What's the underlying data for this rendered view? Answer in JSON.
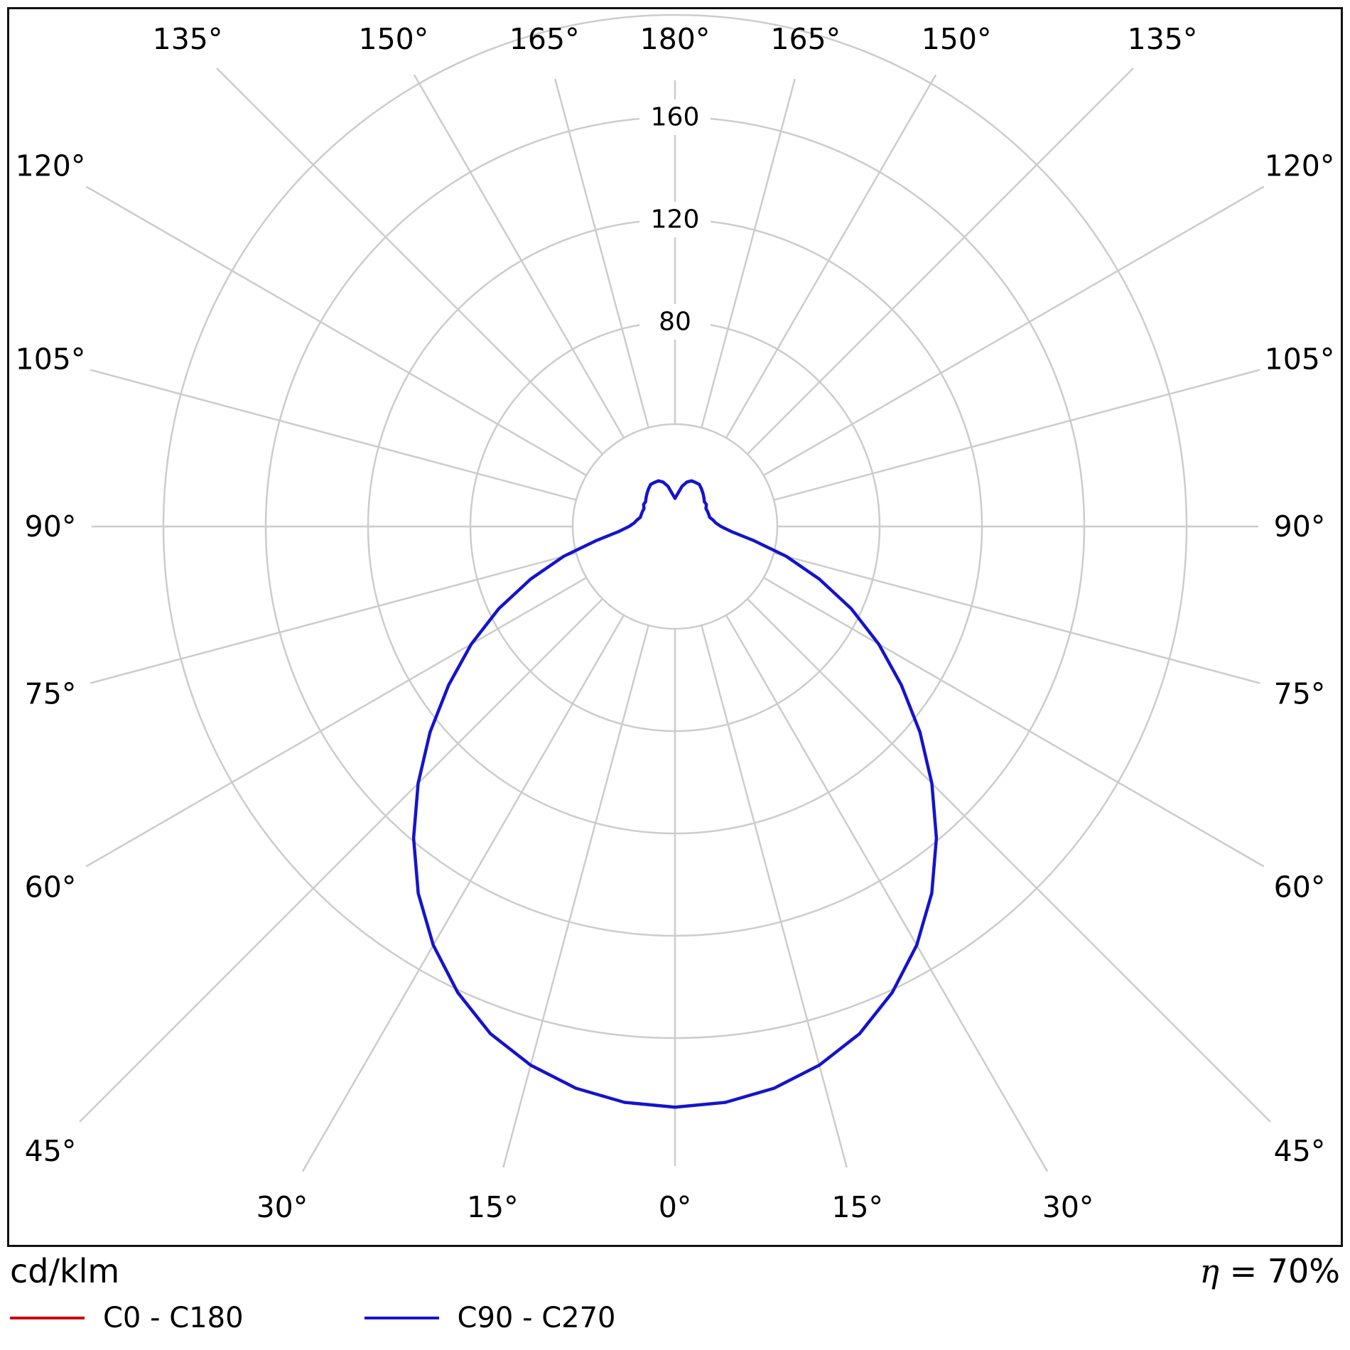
{
  "footer": {
    "units_label": "cd/klm",
    "efficiency_symbol": "η",
    "efficiency_rest": " = 70%"
  },
  "chart_data": {
    "type": "line",
    "subtype": "polar-photometric-luminous-intensity",
    "radial_unit": "cd/klm",
    "efficiency": "η = 70%",
    "mirror_symmetric": true,
    "grid_color": "#cccccc",
    "radial_ring_step": 40,
    "radial_max": 200,
    "radial_ticks": [
      80,
      120,
      160
    ],
    "angular_grid_step_deg": 15,
    "angular_labels_deg": [
      0,
      15,
      30,
      45,
      60,
      75,
      90,
      105,
      120,
      135,
      150,
      165,
      180
    ],
    "angles_deg": [
      0,
      5,
      10,
      15,
      20,
      25,
      30,
      35,
      40,
      45,
      50,
      55,
      60,
      65,
      70,
      75,
      80,
      85,
      90,
      95,
      100,
      105,
      110,
      115,
      120,
      125,
      130,
      135,
      140,
      145,
      150,
      155,
      160,
      165,
      170,
      175,
      180
    ],
    "series": [
      {
        "name": "C0 - C180",
        "color": "#cc0000",
        "values": [
          227,
          226,
          223,
          218,
          211,
          201,
          189,
          175,
          159,
          142,
          125,
          108,
          92,
          76,
          60,
          45,
          31,
          22,
          18,
          16,
          15,
          14,
          14,
          14,
          14,
          15,
          15,
          16,
          17,
          18,
          19,
          19,
          19,
          18,
          16,
          13,
          11
        ]
      },
      {
        "name": "C90 - C270",
        "color": "#1414cc",
        "values": [
          227,
          226,
          223,
          218,
          211,
          201,
          189,
          175,
          159,
          142,
          125,
          108,
          92,
          76,
          60,
          45,
          31,
          22,
          18,
          16,
          15,
          14,
          14,
          14,
          14,
          15,
          15,
          16,
          17,
          18,
          19,
          19,
          19,
          18,
          16,
          13,
          11
        ]
      }
    ]
  }
}
